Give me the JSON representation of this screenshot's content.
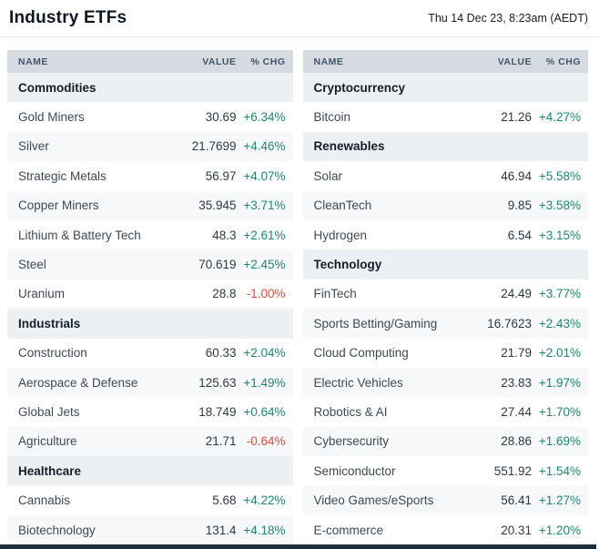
{
  "header": {
    "title": "Industry ETFs",
    "timestamp": "Thu 14 Dec 23, 8:23am (AEDT)"
  },
  "columns": {
    "name": "NAME",
    "value": "VALUE",
    "change": "% CHG"
  },
  "colors": {
    "positive": "#1b8a6b",
    "negative": "#ef4a3e",
    "header_bar_bg": "#d6dbe1",
    "section_bg": "#edf0f2",
    "stripe_bg": "#f7f8f9"
  },
  "tables": [
    {
      "sections": [
        {
          "label": "Commodities",
          "rows": [
            {
              "name": "Gold Miners",
              "value": "30.69",
              "change": "+6.34%"
            },
            {
              "name": "Silver",
              "value": "21.7699",
              "change": "+4.46%"
            },
            {
              "name": "Strategic Metals",
              "value": "56.97",
              "change": "+4.07%"
            },
            {
              "name": "Copper Miners",
              "value": "35.945",
              "change": "+3.71%"
            },
            {
              "name": "Lithium & Battery Tech",
              "value": "48.3",
              "change": "+2.61%"
            },
            {
              "name": "Steel",
              "value": "70.619",
              "change": "+2.45%"
            },
            {
              "name": "Uranium",
              "value": "28.8",
              "change": "-1.00%"
            }
          ]
        },
        {
          "label": "Industrials",
          "rows": [
            {
              "name": "Construction",
              "value": "60.33",
              "change": "+2.04%"
            },
            {
              "name": "Aerospace & Defense",
              "value": "125.63",
              "change": "+1.49%"
            },
            {
              "name": "Global Jets",
              "value": "18.749",
              "change": "+0.64%"
            },
            {
              "name": "Agriculture",
              "value": "21.71",
              "change": "-0.64%"
            }
          ]
        },
        {
          "label": "Healthcare",
          "rows": [
            {
              "name": "Cannabis",
              "value": "5.68",
              "change": "+4.22%"
            },
            {
              "name": "Biotechnology",
              "value": "131.4",
              "change": "+4.18%"
            }
          ]
        }
      ]
    },
    {
      "sections": [
        {
          "label": "Cryptocurrency",
          "rows": [
            {
              "name": "Bitcoin",
              "value": "21.26",
              "change": "+4.27%"
            }
          ]
        },
        {
          "label": "Renewables",
          "rows": [
            {
              "name": "Solar",
              "value": "46.94",
              "change": "+5.58%"
            },
            {
              "name": "CleanTech",
              "value": "9.85",
              "change": "+3.58%"
            },
            {
              "name": "Hydrogen",
              "value": "6.54",
              "change": "+3.15%"
            }
          ]
        },
        {
          "label": "Technology",
          "rows": [
            {
              "name": "FinTech",
              "value": "24.49",
              "change": "+3.77%"
            },
            {
              "name": "Sports Betting/Gaming",
              "value": "16.7623",
              "change": "+2.43%"
            },
            {
              "name": "Cloud Computing",
              "value": "21.79",
              "change": "+2.01%"
            },
            {
              "name": "Electric Vehicles",
              "value": "23.83",
              "change": "+1.97%"
            },
            {
              "name": "Robotics & AI",
              "value": "27.44",
              "change": "+1.70%"
            },
            {
              "name": "Cybersecurity",
              "value": "28.86",
              "change": "+1.69%"
            },
            {
              "name": "Semiconductor",
              "value": "551.92",
              "change": "+1.54%"
            },
            {
              "name": "Video Games/eSports",
              "value": "56.41",
              "change": "+1.27%"
            },
            {
              "name": "E-commerce",
              "value": "20.31",
              "change": "+1.20%"
            }
          ]
        }
      ]
    }
  ]
}
